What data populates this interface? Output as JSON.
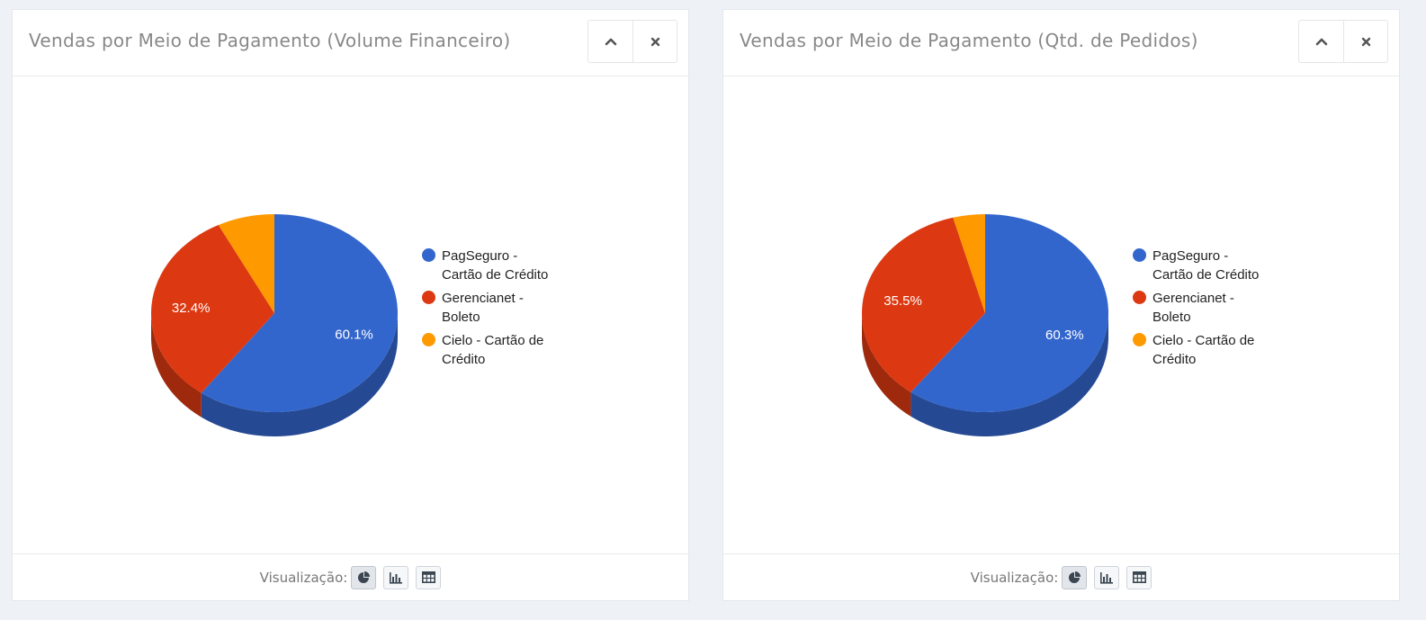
{
  "panels": [
    {
      "title": "Vendas por Meio de Pagamento (Volume Financeiro)",
      "collapse_icon": "chevron-up-icon",
      "close_icon": "close-icon",
      "footer_label": "Visualização:",
      "chart_data": {
        "type": "pie",
        "categories": [
          "PagSeguro - Cartão de Crédito",
          "Gerencianet - Boleto",
          "Cielo - Cartão de Crédito"
        ],
        "values": [
          60.1,
          32.4,
          7.5
        ],
        "data_labels": [
          "60.1%",
          "32.4%",
          ""
        ],
        "colors": [
          "#3366cc",
          "#dc3912",
          "#ff9900"
        ],
        "legend_position": "right",
        "style": "3d"
      }
    },
    {
      "title": "Vendas por Meio de Pagamento (Qtd. de Pedidos)",
      "collapse_icon": "chevron-up-icon",
      "close_icon": "close-icon",
      "footer_label": "Visualização:",
      "chart_data": {
        "type": "pie",
        "categories": [
          "PagSeguro - Cartão de Crédito",
          "Gerencianet - Boleto",
          "Cielo - Cartão de Crédito"
        ],
        "values": [
          60.3,
          35.5,
          4.2
        ],
        "data_labels": [
          "60.3%",
          "35.5%",
          ""
        ],
        "colors": [
          "#3366cc",
          "#dc3912",
          "#ff9900"
        ],
        "legend_position": "right",
        "style": "3d"
      }
    }
  ],
  "view_buttons": [
    {
      "icon": "pie-chart-icon",
      "active": true
    },
    {
      "icon": "bar-chart-icon",
      "active": false
    },
    {
      "icon": "table-icon",
      "active": false
    }
  ]
}
